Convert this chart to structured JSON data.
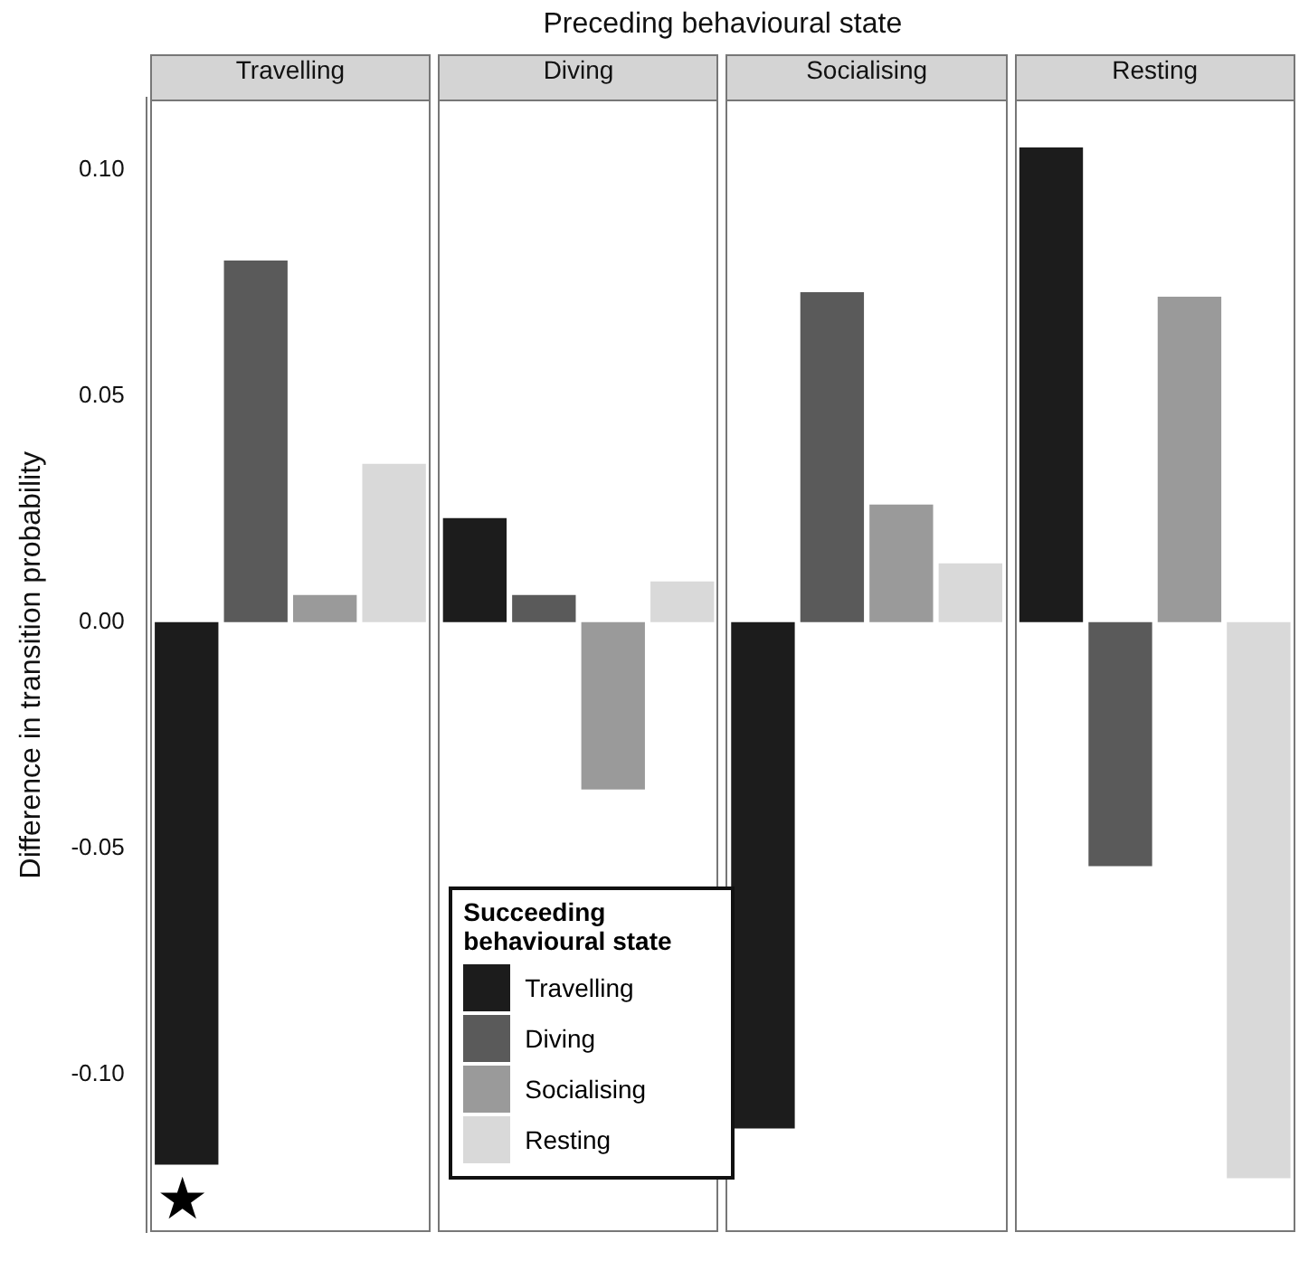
{
  "chart_data": {
    "type": "bar",
    "xlabel": "Preceding behavioural state",
    "ylabel": "Difference in transition probability",
    "legend_title": "Succeeding behavioural state",
    "categories": [
      "Travelling",
      "Diving",
      "Socialising",
      "Resting"
    ],
    "series": [
      {
        "name": "Travelling",
        "color": "#1c1c1c",
        "values": [
          -0.12,
          0.023,
          -0.112,
          0.105
        ]
      },
      {
        "name": "Diving",
        "color": "#5a5a5a",
        "values": [
          0.08,
          0.006,
          0.073,
          -0.054
        ]
      },
      {
        "name": "Socialising",
        "color": "#9a9a9a",
        "values": [
          0.006,
          -0.037,
          0.026,
          0.072
        ]
      },
      {
        "name": "Resting",
        "color": "#d9d9d9",
        "values": [
          0.035,
          0.009,
          0.013,
          -0.123
        ]
      }
    ],
    "ylim": [
      -0.135,
      0.116
    ],
    "yticks": [
      {
        "value": -0.1,
        "label": "-0.10"
      },
      {
        "value": -0.05,
        "label": "-0.05"
      },
      {
        "value": 0,
        "label": "0.00"
      },
      {
        "value": 0.05,
        "label": "0.05"
      },
      {
        "value": 0.1,
        "label": "0.10"
      }
    ],
    "grid": false,
    "legend": "bottom",
    "annotations": [
      "★"
    ]
  }
}
